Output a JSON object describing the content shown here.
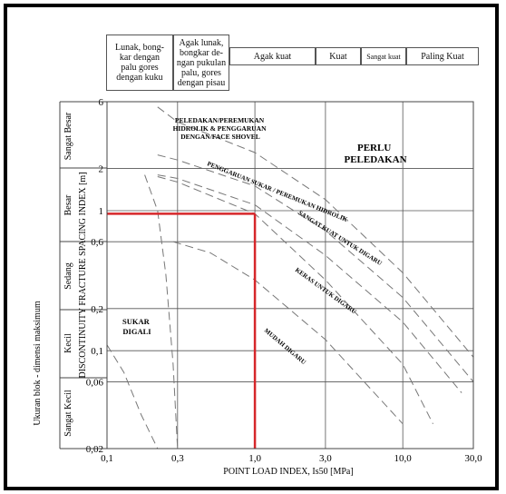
{
  "header_cells": [
    "Lunak, bong-\nkar dengan\npalu gores\ndengan kuku",
    "Agak lunak,\nbongkar de-\nngan pukulan\npalu, gores\ndengan pisau",
    "Agak kuat",
    "Kuat",
    "Sangat kuat",
    "Paling Kuat"
  ],
  "chart_data": {
    "type": "line",
    "xlabel": "POINT LOAD INDEX, Is50     [MPa]",
    "ylabel": "DISCONTINUITY FRACTURE SPACING INDEX   [m]",
    "outer_ylabel": "Ukuran blok - dimensi maksimum",
    "x_scale": "log",
    "y_scale": "log",
    "xlim": [
      0.1,
      30.0
    ],
    "ylim": [
      0.02,
      6
    ],
    "x_ticks": [
      0.1,
      0.3,
      1.0,
      3.0,
      10.0,
      30.0
    ],
    "x_tick_labels": [
      "0,1",
      "0,3",
      "1,0",
      "3,0",
      "10,0",
      "30,0"
    ],
    "y_ticks": [
      6,
      2,
      1,
      0.6,
      0.2,
      0.1,
      0.06,
      0.02
    ],
    "y_tick_labels": [
      "6",
      "2",
      "1",
      "0,6",
      "0,2",
      "0,1",
      "0,06",
      "0,02"
    ],
    "grid": true,
    "size_classes": [
      "Sangat Besar",
      "Besar",
      "Sedang",
      "Kecil",
      "Sangat Kecil"
    ],
    "region_labels": {
      "blasting": "PERLU\nPELEDAKAN",
      "hydraulic": "PELEDAKAN/PEREMUKAN\nHIDROLIK & PENGGARUAN\nDENGAN/FACE SHOVEL",
      "hard_ripping": "PENGGARUAN SUKAR / PEREMUKAN HIDROLIK",
      "very_hard": "SANGAT KUAT UNTUK DIGARU",
      "hard": "KERAS UNTUK DIGARU",
      "easy": "MUDAH DIGARU",
      "difficult": "SUKAR\nDIGALI"
    },
    "highlight_point": {
      "x": 1.0,
      "y": 0.95,
      "color": "#d6262a"
    },
    "series": [
      {
        "x": [
          0.22,
          0.3,
          1.0,
          3.0,
          10.0,
          30.0
        ],
        "y": [
          5.5,
          4.3,
          2.6,
          1.2,
          0.36,
          0.09
        ]
      },
      {
        "x": [
          0.22,
          0.3,
          1.0,
          3.0,
          10.0,
          30.0
        ],
        "y": [
          2.5,
          2.3,
          1.5,
          0.72,
          0.24,
          0.06
        ]
      },
      {
        "x": [
          0.22,
          0.3,
          1.0,
          3.0,
          10.0,
          25.0
        ],
        "y": [
          1.8,
          1.7,
          1.1,
          0.48,
          0.16,
          0.05
        ]
      },
      {
        "x": [
          0.22,
          0.3,
          1.0,
          3.0,
          10.0,
          16.0
        ],
        "y": [
          1.75,
          1.6,
          0.95,
          0.32,
          0.08,
          0.03
        ]
      },
      {
        "x": [
          0.28,
          0.5,
          1.0,
          3.0,
          10.0
        ],
        "y": [
          0.6,
          0.5,
          0.32,
          0.12,
          0.03
        ]
      },
      {
        "x": [
          0.18,
          0.22,
          0.25,
          0.28,
          0.3
        ],
        "y": [
          1.8,
          1.0,
          0.35,
          0.08,
          0.02
        ]
      },
      {
        "x": [
          0.1,
          0.13,
          0.17,
          0.22
        ],
        "y": [
          0.11,
          0.07,
          0.035,
          0.02
        ]
      }
    ]
  }
}
